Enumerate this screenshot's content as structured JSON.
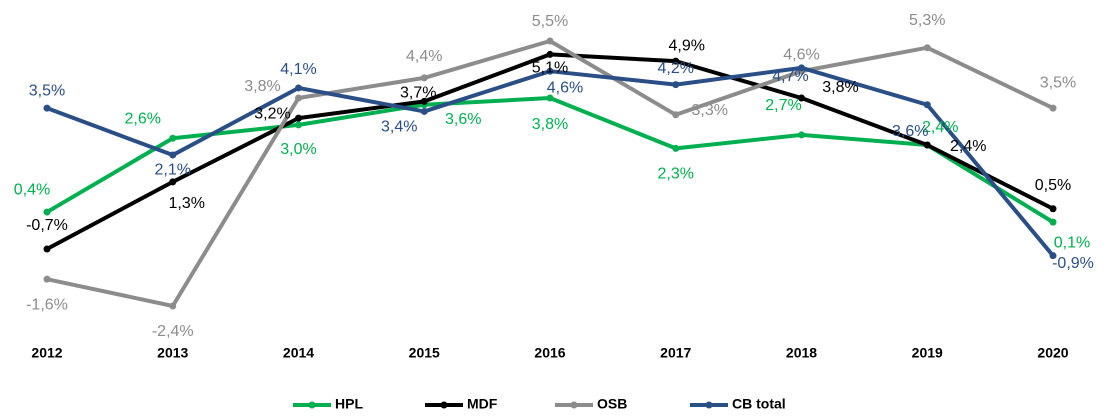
{
  "chart_data": {
    "type": "line",
    "categories": [
      "2012",
      "2013",
      "2014",
      "2015",
      "2016",
      "2017",
      "2018",
      "2019",
      "2020"
    ],
    "series": [
      {
        "name": "HPL",
        "color": "#00b050",
        "values": [
          0.4,
          2.6,
          3.0,
          3.6,
          3.8,
          2.3,
          2.7,
          2.4,
          0.1
        ],
        "value_labels": [
          "0,4%",
          "2,6%",
          "3,0%",
          "3,6%",
          "3,8%",
          "2,3%",
          "2,7%",
          "2,4%",
          "0,1%"
        ]
      },
      {
        "name": "MDF",
        "color": "#000000",
        "values": [
          -0.7,
          1.3,
          3.2,
          3.7,
          5.1,
          4.9,
          3.8,
          2.4,
          0.5
        ],
        "value_labels": [
          "-0,7%",
          "1,3%",
          "3,2%",
          "3,7%",
          "5,1%",
          "4,9%",
          "3,8%",
          "2,4%",
          "0,5%"
        ]
      },
      {
        "name": "OSB",
        "color": "#8c8c8c",
        "values": [
          -1.6,
          -2.4,
          3.8,
          4.4,
          5.5,
          3.3,
          4.6,
          5.3,
          3.5
        ],
        "value_labels": [
          "-1,6%",
          "-2,4%",
          "3,8%",
          "4,4%",
          "5,5%",
          "3,3%",
          "4,6%",
          "5,3%",
          "3,5%"
        ]
      },
      {
        "name": "CB total",
        "color": "#2a4f86",
        "values": [
          3.5,
          2.1,
          4.1,
          3.4,
          4.6,
          4.2,
          4.7,
          3.6,
          -0.9
        ],
        "value_labels": [
          "3,5%",
          "2,1%",
          "4,1%",
          "3,4%",
          "4,6%",
          "4,2%",
          "4,7%",
          "3,6%",
          "-0,9%"
        ]
      }
    ],
    "legend": "bottom"
  }
}
